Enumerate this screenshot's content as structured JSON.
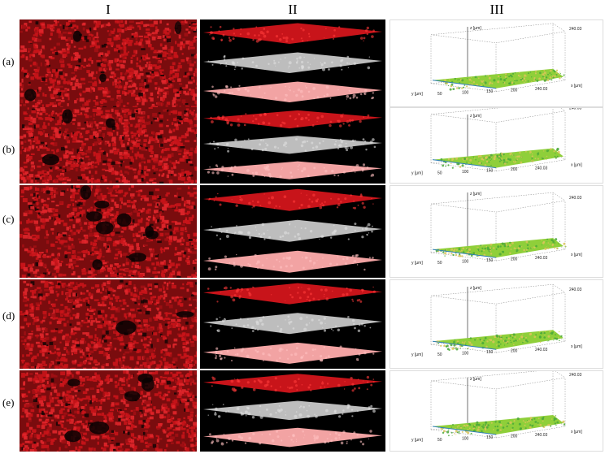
{
  "column_headers": [
    "I",
    "II",
    "III"
  ],
  "rows": [
    {
      "label": "(a)",
      "ztick_top": "240.03",
      "xticks": [
        "50",
        "100",
        "150",
        "200",
        "240.03"
      ]
    },
    {
      "label": "(b)",
      "ztick_top": "240.03",
      "xticks": [
        "50",
        "100",
        "150",
        "200",
        "240.03"
      ]
    },
    {
      "label": "(c)",
      "ztick_top": "240.03",
      "xticks": [
        "50",
        "100",
        "150",
        "200",
        "240.03"
      ]
    },
    {
      "label": "(d)",
      "ztick_top": "240.03",
      "xticks": [
        "50",
        "100",
        "150",
        "200",
        "240.03"
      ]
    },
    {
      "label": "(e)",
      "ztick_top": "240.03",
      "xticks": [
        "50",
        "100",
        "150",
        "200",
        "240.03"
      ]
    }
  ],
  "axis_labels": {
    "z": "z [µm]",
    "x": "x [µm]",
    "y": "y [µm]"
  },
  "colors": {
    "confocal_red": "#c8141a",
    "slab_gray": "#bdbdbd",
    "slab_pink": "#f2a3a3",
    "surface_green": "#8fcf3a",
    "surface_yellow": "#d9c45a"
  }
}
